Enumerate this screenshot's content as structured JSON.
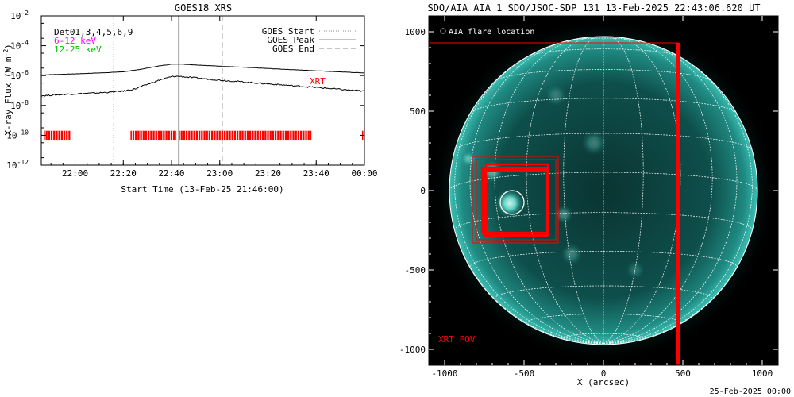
{
  "footer_date": "25-Feb-2025 00:00",
  "colors": {
    "det": "#000000",
    "band_low": "#ff00ff",
    "band_high": "#00dd00",
    "xrt": "#ff0000",
    "disk": "#0f5f5a"
  },
  "chart_data": [
    {
      "type": "line",
      "title": "GOES18 XRS",
      "xlabel": "Start Time (13-Feb-25 21:46:00)",
      "ylabel_main": "X-ray Flux (W m",
      "ylabel_sup": "-2",
      "ylabel_close": ")",
      "y_scale": "log",
      "ylim": [
        1e-12,
        0.01
      ],
      "xlim": [
        "21:46",
        "00:00"
      ],
      "x_tick_labels": [
        "22:00",
        "22:20",
        "22:40",
        "23:00",
        "23:20",
        "23:40",
        "00:00"
      ],
      "y_ticks": [
        {
          "base": "10",
          "exp": "-2"
        },
        {
          "base": "10",
          "exp": "-4"
        },
        {
          "base": "10",
          "exp": "-6"
        },
        {
          "base": "10",
          "exp": "-8"
        },
        {
          "base": "10",
          "exp": "-10"
        },
        {
          "base": "10",
          "exp": "-12"
        }
      ],
      "annotations": {
        "detectors": "Det01,3,4,5,6,9",
        "band_low": "6-12 keV",
        "band_high": "12-25 keV",
        "xrt_label": "XRT"
      },
      "legend": {
        "placement": "top-right",
        "items": [
          {
            "label": "GOES Start",
            "style": "dotted"
          },
          {
            "label": "GOES Peak",
            "style": "solid"
          },
          {
            "label": "GOES End",
            "style": "dashed"
          }
        ]
      },
      "event_markers": {
        "start": "22:16",
        "peak": "22:43",
        "end": "23:01"
      },
      "series": [
        {
          "x": [
            "21:46",
            "22:00",
            "22:10",
            "22:20",
            "22:25",
            "22:30",
            "22:35",
            "22:40",
            "22:43",
            "22:50",
            "23:00",
            "23:20",
            "23:40",
            "00:00"
          ],
          "values": [
            1.1e-06,
            1.3e-06,
            1.5e-06,
            1.8e-06,
            2.3e-06,
            3.2e-06,
            4.5e-06,
            5.8e-06,
            6e-06,
            5.2e-06,
            4.3e-06,
            3e-06,
            2.1e-06,
            1.5e-06
          ]
        },
        {
          "x": [
            "21:46",
            "22:00",
            "22:10",
            "22:20",
            "22:25",
            "22:30",
            "22:35",
            "22:40",
            "22:43",
            "22:50",
            "23:00",
            "23:20",
            "23:40",
            "00:00"
          ],
          "values": [
            4.5e-08,
            6e-08,
            7e-08,
            9e-08,
            1.3e-07,
            2.6e-07,
            5e-07,
            8.5e-07,
            9e-07,
            7e-07,
            5e-07,
            2.8e-07,
            1.6e-07,
            9e-08
          ]
        }
      ],
      "xrt_coverage": [
        [
          "21:47",
          "21:58"
        ],
        [
          "22:23",
          "22:42"
        ],
        [
          "22:43",
          "23:38"
        ],
        [
          "23:59",
          "00:00"
        ]
      ]
    },
    {
      "type": "scatter",
      "title": "SDO/AIA AIA_1 SDO/JSOC-SDP 131 13-Feb-2025 22:43:06.620 UT",
      "xlabel": "X (arcsec)",
      "xlim": [
        -1100,
        1100
      ],
      "ylim": [
        -1100,
        1100
      ],
      "x_ticks": [
        -1000,
        -500,
        0,
        500,
        1000
      ],
      "y_ticks": [
        1000,
        500,
        0,
        -500,
        -1000
      ],
      "solar_radius": 970,
      "legend_label": "AIA flare location",
      "fov_label": "XRT FOV",
      "flare_location": {
        "x": -575,
        "y": -75,
        "radius": 75
      },
      "xrt_fov": {
        "x": [
          -1100,
          470
        ],
        "y": [
          -1100,
          930
        ]
      },
      "xrt_pointings": [
        {
          "x": [
            -825,
            -285
          ],
          "y": [
            -330,
            215
          ]
        },
        {
          "x": [
            -800,
            -300
          ],
          "y": [
            -310,
            195
          ]
        },
        {
          "x": [
            -740,
            -350
          ],
          "y": [
            -280,
            165
          ]
        },
        {
          "x": [
            -755,
            -345
          ],
          "y": [
            -280,
            135
          ]
        },
        {
          "x": [
            -765,
            -355
          ],
          "y": [
            -265,
            145
          ]
        },
        {
          "x": [
            -750,
            -355
          ],
          "y": [
            -285,
            125
          ]
        }
      ]
    }
  ]
}
